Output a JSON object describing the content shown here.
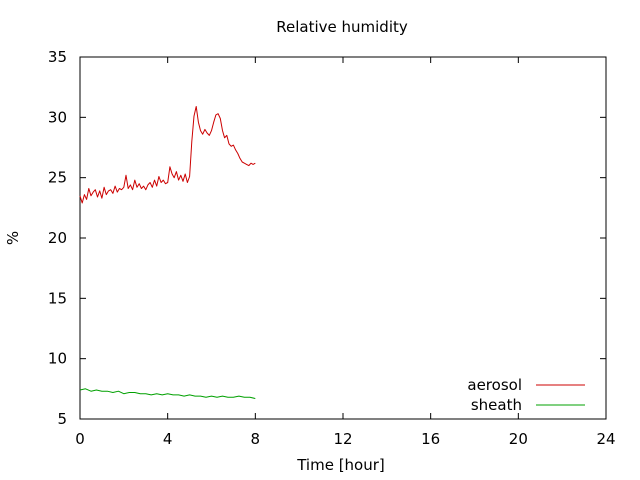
{
  "chart_data": {
    "type": "line",
    "title": "Relative humidity",
    "xlabel": "Time [hour]",
    "ylabel": "%",
    "xlim": [
      0,
      24
    ],
    "ylim": [
      5,
      35
    ],
    "xticks": [
      0,
      4,
      8,
      12,
      16,
      20,
      24
    ],
    "yticks": [
      5,
      10,
      15,
      20,
      25,
      30,
      35
    ],
    "grid": false,
    "legend_position": "bottom-right",
    "series": [
      {
        "name": "aerosol",
        "color": "#cc0000",
        "x": [
          0,
          0.1,
          0.2,
          0.3,
          0.4,
          0.5,
          0.6,
          0.7,
          0.8,
          0.9,
          1.0,
          1.1,
          1.2,
          1.3,
          1.4,
          1.5,
          1.6,
          1.7,
          1.8,
          1.9,
          2.0,
          2.1,
          2.2,
          2.3,
          2.4,
          2.5,
          2.6,
          2.7,
          2.8,
          2.9,
          3.0,
          3.1,
          3.2,
          3.3,
          3.4,
          3.5,
          3.6,
          3.7,
          3.8,
          3.9,
          4.0,
          4.1,
          4.2,
          4.3,
          4.4,
          4.5,
          4.6,
          4.7,
          4.8,
          4.9,
          5.0,
          5.1,
          5.2,
          5.3,
          5.4,
          5.5,
          5.6,
          5.7,
          5.8,
          5.9,
          6.0,
          6.1,
          6.2,
          6.3,
          6.4,
          6.5,
          6.6,
          6.7,
          6.8,
          6.9,
          7.0,
          7.1,
          7.2,
          7.3,
          7.4,
          7.5,
          7.6,
          7.7,
          7.8,
          7.9,
          8.0
        ],
        "y": [
          23.5,
          22.9,
          23.6,
          23.2,
          24.1,
          23.5,
          23.8,
          24.0,
          23.4,
          23.9,
          23.3,
          24.2,
          23.6,
          23.9,
          24.0,
          23.7,
          24.3,
          23.8,
          24.1,
          24.0,
          24.2,
          25.2,
          24.1,
          24.4,
          24.0,
          24.8,
          24.2,
          24.5,
          24.1,
          24.3,
          24.0,
          24.4,
          24.6,
          24.2,
          24.8,
          24.3,
          25.1,
          24.6,
          24.8,
          24.5,
          24.6,
          25.9,
          25.3,
          25.0,
          25.5,
          24.8,
          25.2,
          24.7,
          25.3,
          24.6,
          25.1,
          28.0,
          30.1,
          30.9,
          29.6,
          28.9,
          28.6,
          29.0,
          28.7,
          28.5,
          28.9,
          29.6,
          30.2,
          30.3,
          29.9,
          28.9,
          28.3,
          28.5,
          27.8,
          27.6,
          27.7,
          27.3,
          27.0,
          26.6,
          26.3,
          26.2,
          26.1,
          26.0,
          26.2,
          26.1,
          26.2
        ]
      },
      {
        "name": "sheath",
        "color": "#00a000",
        "x": [
          0,
          0.25,
          0.5,
          0.75,
          1.0,
          1.25,
          1.5,
          1.75,
          2.0,
          2.25,
          2.5,
          2.75,
          3.0,
          3.25,
          3.5,
          3.75,
          4.0,
          4.25,
          4.5,
          4.75,
          5.0,
          5.25,
          5.5,
          5.75,
          6.0,
          6.25,
          6.5,
          6.75,
          7.0,
          7.25,
          7.5,
          7.75,
          8.0
        ],
        "y": [
          7.4,
          7.5,
          7.3,
          7.4,
          7.3,
          7.3,
          7.2,
          7.3,
          7.1,
          7.2,
          7.2,
          7.1,
          7.1,
          7.0,
          7.1,
          7.0,
          7.1,
          7.0,
          7.0,
          6.9,
          7.0,
          6.9,
          6.9,
          6.8,
          6.9,
          6.8,
          6.9,
          6.8,
          6.8,
          6.9,
          6.8,
          6.8,
          6.7
        ]
      }
    ]
  }
}
